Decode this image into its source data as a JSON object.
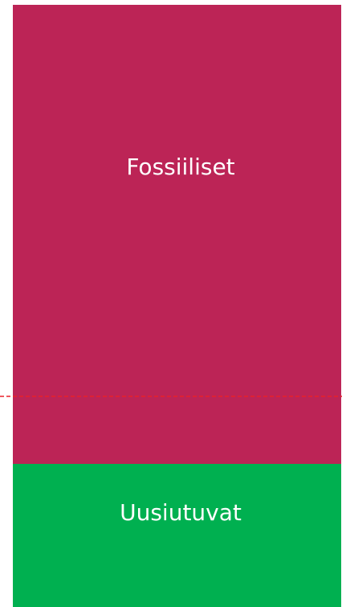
{
  "chart_data": {
    "type": "bar",
    "stacked": true,
    "title": "",
    "xlabel": "",
    "ylabel": "",
    "segments": [
      {
        "label": "Fossiiliset",
        "color": "#BC2456"
      },
      {
        "label": "Uusiutuvat",
        "color": "#00B050"
      }
    ],
    "reference_line": {
      "color": "#E8202A",
      "style": "dashed"
    },
    "legend": "none",
    "grid": false
  }
}
